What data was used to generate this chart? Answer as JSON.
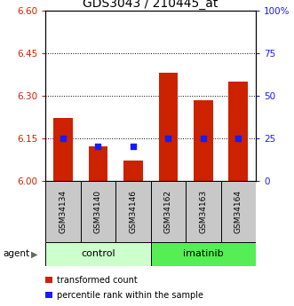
{
  "title": "GDS3043 / 210445_at",
  "categories": [
    "GSM34134",
    "GSM34140",
    "GSM34146",
    "GSM34162",
    "GSM34163",
    "GSM34164"
  ],
  "bar_values": [
    6.22,
    6.12,
    6.07,
    6.38,
    6.285,
    6.35
  ],
  "dot_values": [
    25,
    20,
    20,
    25,
    25,
    25
  ],
  "ylim_left": [
    6.0,
    6.6
  ],
  "ylim_right": [
    0,
    100
  ],
  "left_ticks": [
    6.0,
    6.15,
    6.3,
    6.45,
    6.6
  ],
  "right_ticks": [
    0,
    25,
    50,
    75,
    100
  ],
  "right_tick_labels": [
    "0",
    "25",
    "50",
    "75",
    "100%"
  ],
  "bar_color": "#cc2200",
  "dot_color": "#1a1aff",
  "bar_bottom": 6.0,
  "control_color": "#ccffcc",
  "imatinib_color": "#55ee55",
  "label_box_color": "#c8c8c8",
  "agent_label": "agent",
  "legend_bar_label": "transformed count",
  "legend_dot_label": "percentile rank within the sample",
  "left_tick_color": "#cc2200",
  "right_tick_color": "#1a1aff",
  "title_fontsize": 10,
  "tick_fontsize": 7.5,
  "cat_fontsize": 6.5,
  "group_fontsize": 8,
  "legend_fontsize": 7
}
